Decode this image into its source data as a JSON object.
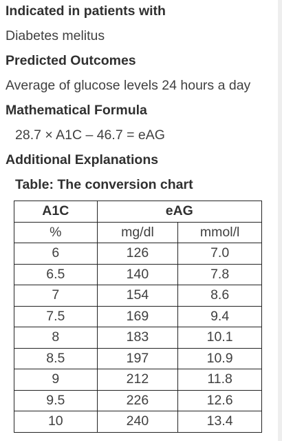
{
  "sections": [
    {
      "heading": "Indicated in patients with",
      "value": "Diabetes melitus"
    },
    {
      "heading": "Predicted Outcomes",
      "value": "Average of glucose levels 24 hours a day"
    },
    {
      "heading": "Mathematical Formula",
      "value": "28.7 × A1C – 46.7 = eAG"
    },
    {
      "heading": "Additional Explanations"
    }
  ],
  "table": {
    "caption": "Table: The conversion chart",
    "group_headers": [
      "A1C",
      "eAG"
    ],
    "unit_headers": [
      "%",
      "mg/dl",
      "mmol/l"
    ],
    "rows": [
      [
        "6",
        "126",
        "7.0"
      ],
      [
        "6.5",
        "140",
        "7.8"
      ],
      [
        "7",
        "154",
        "8.6"
      ],
      [
        "7.5",
        "169",
        "9.4"
      ],
      [
        "8",
        "183",
        "10.1"
      ],
      [
        "8.5",
        "197",
        "10.9"
      ],
      [
        "9",
        "212",
        "11.8"
      ],
      [
        "9.5",
        "226",
        "12.6"
      ],
      [
        "10",
        "240",
        "13.4"
      ]
    ]
  }
}
